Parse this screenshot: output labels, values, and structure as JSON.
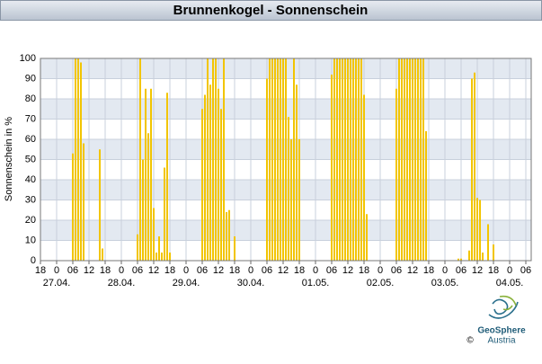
{
  "chart_data": {
    "type": "bar",
    "title": "Brunnenkogel - Sonnenschein",
    "y_label": "Sonnenschein in %",
    "x": [
      6,
      7,
      8,
      9,
      10,
      16,
      17,
      30,
      31,
      32,
      33,
      34,
      35,
      36,
      37,
      38,
      39,
      40,
      41,
      42,
      54,
      55,
      56,
      57,
      58,
      59,
      60,
      61,
      62,
      63,
      64,
      66,
      78,
      79,
      80,
      81,
      82,
      83,
      84,
      85,
      86,
      87,
      88,
      89,
      90,
      102,
      103,
      104,
      105,
      106,
      107,
      108,
      109,
      110,
      111,
      112,
      113,
      114,
      115,
      126,
      127,
      128,
      129,
      130,
      131,
      132,
      133,
      134,
      135,
      136,
      137,
      149,
      150,
      153,
      154,
      155,
      156,
      157,
      158,
      160,
      162
    ],
    "values": [
      53,
      100,
      100,
      98,
      58,
      55,
      6,
      13,
      100,
      50,
      85,
      63,
      85,
      26,
      4,
      12,
      4,
      46,
      83,
      4,
      75,
      82,
      100,
      87,
      100,
      100,
      85,
      75,
      100,
      24,
      25,
      12,
      90,
      100,
      100,
      100,
      100,
      100,
      100,
      100,
      71,
      60,
      100,
      87,
      60,
      92,
      100,
      100,
      100,
      100,
      100,
      100,
      100,
      100,
      100,
      100,
      100,
      82,
      23,
      85,
      100,
      100,
      100,
      100,
      100,
      100,
      100,
      100,
      100,
      100,
      64,
      1,
      1,
      5,
      90,
      93,
      31,
      30,
      4,
      18,
      8
    ],
    "color": "#f2c500",
    "xlim": [
      -6,
      176
    ],
    "ylim": [
      0,
      100
    ],
    "yticks": [
      0,
      10,
      20,
      30,
      40,
      50,
      60,
      70,
      80,
      90,
      100
    ],
    "xticks": [
      {
        "value": -6,
        "label": "18"
      },
      {
        "value": 0,
        "label": "0"
      },
      {
        "value": 6,
        "label": "06"
      },
      {
        "value": 12,
        "label": "12"
      },
      {
        "value": 18,
        "label": "18"
      },
      {
        "value": 24,
        "label": "0"
      },
      {
        "value": 30,
        "label": "06"
      },
      {
        "value": 36,
        "label": "12"
      },
      {
        "value": 42,
        "label": "18"
      },
      {
        "value": 48,
        "label": "0"
      },
      {
        "value": 54,
        "label": "06"
      },
      {
        "value": 60,
        "label": "12"
      },
      {
        "value": 66,
        "label": "18"
      },
      {
        "value": 72,
        "label": "0"
      },
      {
        "value": 78,
        "label": "06"
      },
      {
        "value": 84,
        "label": "12"
      },
      {
        "value": 90,
        "label": "18"
      },
      {
        "value": 96,
        "label": "0"
      },
      {
        "value": 102,
        "label": "06"
      },
      {
        "value": 108,
        "label": "12"
      },
      {
        "value": 114,
        "label": "18"
      },
      {
        "value": 120,
        "label": "0"
      },
      {
        "value": 126,
        "label": "06"
      },
      {
        "value": 132,
        "label": "12"
      },
      {
        "value": 138,
        "label": "18"
      },
      {
        "value": 144,
        "label": "0"
      },
      {
        "value": 150,
        "label": "06"
      },
      {
        "value": 156,
        "label": "12"
      },
      {
        "value": 162,
        "label": "18"
      },
      {
        "value": 168,
        "label": "0"
      },
      {
        "value": 174,
        "label": "06"
      }
    ],
    "date_labels": [
      {
        "value": 0,
        "label": "27.04."
      },
      {
        "value": 24,
        "label": "28.04."
      },
      {
        "value": 48,
        "label": "29.04."
      },
      {
        "value": 72,
        "label": "30.04."
      },
      {
        "value": 96,
        "label": "01.05."
      },
      {
        "value": 120,
        "label": "02.05."
      },
      {
        "value": 144,
        "label": "03.05."
      },
      {
        "value": 168,
        "label": "04.05."
      }
    ],
    "grid": true,
    "logo": {
      "name": "GeoSphere",
      "country": "Austria",
      "copyright": "©"
    }
  }
}
